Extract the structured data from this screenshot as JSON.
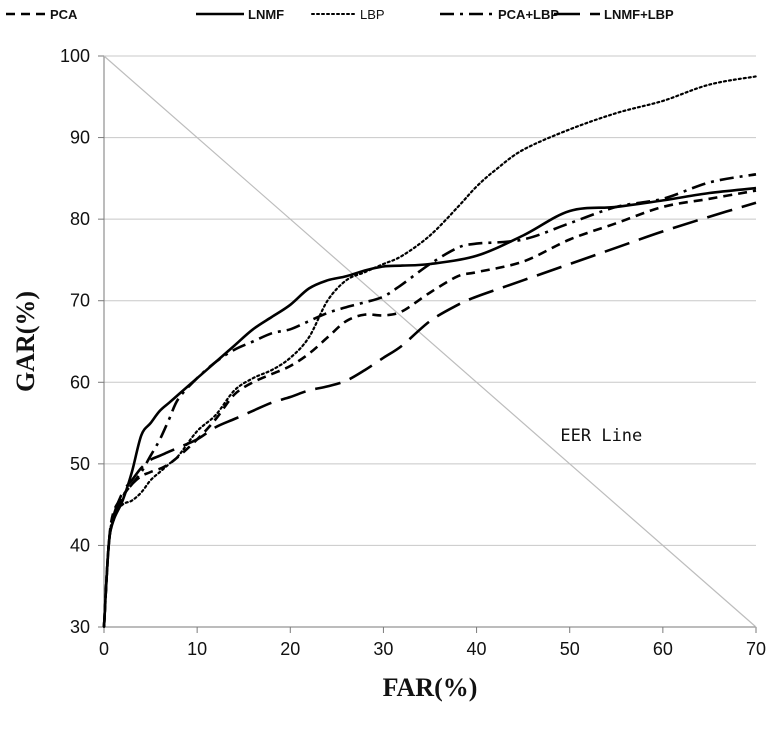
{
  "chart_data": {
    "type": "line",
    "title": "",
    "xlabel": "FAR(%)",
    "ylabel": "GAR(%)",
    "xlim": [
      0,
      70
    ],
    "ylim": [
      30,
      100
    ],
    "xticks": [
      "0",
      "10",
      "20",
      "30",
      "40",
      "50",
      "60",
      "70"
    ],
    "yticks": [
      "30",
      "40",
      "50",
      "60",
      "70",
      "80",
      "90",
      "100"
    ],
    "grid": "horizontal",
    "legend_position": "top",
    "series": [
      {
        "name": "PCA",
        "style": "dashed",
        "color": "#000000",
        "x": [
          0,
          0.5,
          1,
          2,
          3,
          4,
          5,
          7,
          10,
          12,
          14,
          16,
          18,
          20,
          22,
          24,
          26,
          28,
          30,
          32,
          35,
          38,
          40,
          45,
          50,
          55,
          60,
          65,
          70
        ],
        "y": [
          30,
          40,
          44,
          46,
          47.5,
          48.5,
          49,
          50,
          53,
          55.5,
          58.5,
          60,
          61,
          62,
          63.5,
          65.5,
          67.5,
          68.3,
          68.2,
          68.7,
          71,
          73,
          73.5,
          74.8,
          77.5,
          79.5,
          81.5,
          82.5,
          83.5
        ]
      },
      {
        "name": "LNMF",
        "style": "solid",
        "color": "#000000",
        "x": [
          0,
          0.5,
          1,
          2,
          3,
          4,
          5,
          6,
          7,
          8,
          10,
          12,
          14,
          16,
          18,
          20,
          22,
          24,
          26,
          28,
          30,
          32,
          35,
          40,
          45,
          50,
          55,
          60,
          65,
          70
        ],
        "y": [
          30,
          40,
          43,
          45.5,
          49,
          53.5,
          55,
          56.5,
          57.5,
          58.5,
          60.5,
          62.5,
          64.5,
          66.5,
          68,
          69.5,
          71.5,
          72.5,
          73,
          73.7,
          74.2,
          74.3,
          74.5,
          75.5,
          78,
          81,
          81.5,
          82.3,
          83.2,
          83.8
        ]
      },
      {
        "name": "LBP",
        "style": "dotted",
        "color": "#000000",
        "x": [
          0,
          0.5,
          1,
          2,
          3,
          4,
          5,
          6,
          7,
          8,
          10,
          12,
          14,
          16,
          18,
          20,
          22,
          24,
          26,
          28,
          30,
          32,
          35,
          38,
          40,
          42,
          45,
          50,
          55,
          60,
          65,
          70
        ],
        "y": [
          30,
          40,
          43.5,
          45,
          45.5,
          46.5,
          48,
          49,
          50,
          51,
          54,
          56,
          59,
          60.5,
          61.5,
          63,
          65.5,
          70,
          72.5,
          73.5,
          74.5,
          75.5,
          78,
          81.5,
          84,
          86,
          88.5,
          91,
          93,
          94.5,
          96.5,
          97.5
        ]
      },
      {
        "name": "PCA+LBP",
        "style": "dash-dot",
        "color": "#000000",
        "x": [
          0,
          0.5,
          1,
          2,
          3,
          4,
          5,
          6,
          7,
          8,
          10,
          12,
          14,
          16,
          18,
          20,
          22,
          24,
          26,
          28,
          30,
          32,
          35,
          38,
          40,
          45,
          50,
          55,
          60,
          65,
          70
        ],
        "y": [
          30,
          40,
          43,
          46,
          47.5,
          49,
          51,
          53,
          55.5,
          58,
          60.5,
          62.5,
          64,
          65,
          66,
          66.5,
          67.5,
          68.5,
          69.2,
          69.8,
          70.5,
          72,
          74.5,
          76.5,
          77,
          77.5,
          79.5,
          81.5,
          82.5,
          84.5,
          85.5
        ]
      },
      {
        "name": "LNMF+LBP",
        "style": "long-dash",
        "color": "#000000",
        "x": [
          0,
          0.5,
          1,
          2,
          3,
          4,
          5,
          6,
          7,
          8,
          10,
          12,
          14,
          16,
          18,
          20,
          22,
          24,
          26,
          28,
          30,
          32,
          35,
          38,
          40,
          45,
          50,
          55,
          60,
          65,
          70
        ],
        "y": [
          30,
          40,
          43.5,
          46.5,
          48,
          49.5,
          50.5,
          51,
          51.5,
          52,
          53,
          54.5,
          55.5,
          56.5,
          57.5,
          58.2,
          59,
          59.5,
          60.2,
          61.5,
          63,
          64.5,
          67.5,
          69.5,
          70.5,
          72.5,
          74.5,
          76.5,
          78.5,
          80.3,
          82
        ]
      },
      {
        "name": "EER Line",
        "style": "thin",
        "color": "#bdbdbd",
        "x": [
          0,
          70
        ],
        "y": [
          100,
          30
        ]
      }
    ],
    "annotations": [
      {
        "text": "EER Line",
        "x": 49,
        "y": 52.8
      }
    ]
  }
}
